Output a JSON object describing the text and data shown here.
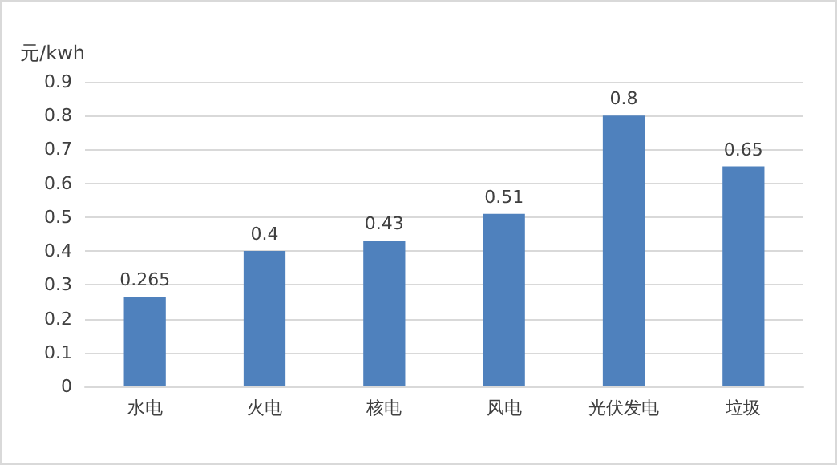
{
  "chart_data": {
    "type": "bar",
    "ylabel": "元/kwh",
    "categories": [
      "水电",
      "火电",
      "核电",
      "风电",
      "光伏发电",
      "垃圾"
    ],
    "values": [
      0.265,
      0.4,
      0.43,
      0.51,
      0.8,
      0.65
    ],
    "color": "#4f81bd",
    "ylim": [
      0,
      0.9
    ],
    "yticks": [
      0,
      0.1,
      0.2,
      0.3,
      0.4,
      0.5,
      0.6,
      0.7,
      0.8,
      0.9
    ],
    "grid": "y",
    "data_labels": true
  }
}
